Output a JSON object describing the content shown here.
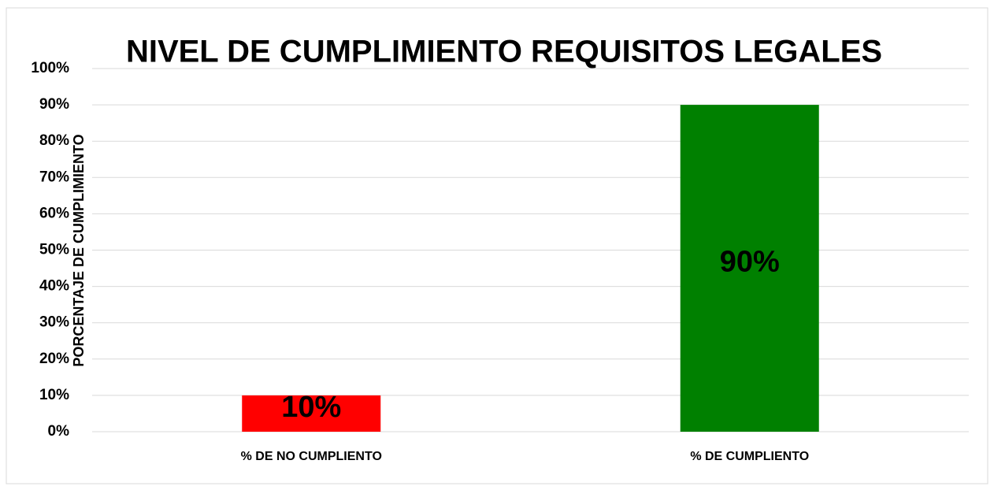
{
  "chart_data": {
    "type": "bar",
    "title": "NIVEL DE CUMPLIMIENTO REQUISITOS LEGALES",
    "y_label": "PORCENTAJE DE CUMPLIMIENTO",
    "categories": [
      "% DE NO CUMPLIENTO",
      "% DE CUMPLIENTO"
    ],
    "values": [
      10,
      90
    ],
    "value_labels": [
      "10%",
      "90%"
    ],
    "colors": [
      "#ff0000",
      "#008000"
    ],
    "ylim": [
      0,
      100
    ],
    "yticks": [
      {
        "value": 0,
        "label": "0%"
      },
      {
        "value": 10,
        "label": "10%"
      },
      {
        "value": 20,
        "label": "20%"
      },
      {
        "value": 30,
        "label": "30%"
      },
      {
        "value": 40,
        "label": "40%"
      },
      {
        "value": 50,
        "label": "50%"
      },
      {
        "value": 60,
        "label": "60%"
      },
      {
        "value": 70,
        "label": "70%"
      },
      {
        "value": 80,
        "label": "80%"
      },
      {
        "value": 90,
        "label": "90%"
      },
      {
        "value": 100,
        "label": "100%"
      }
    ],
    "grid": true
  }
}
